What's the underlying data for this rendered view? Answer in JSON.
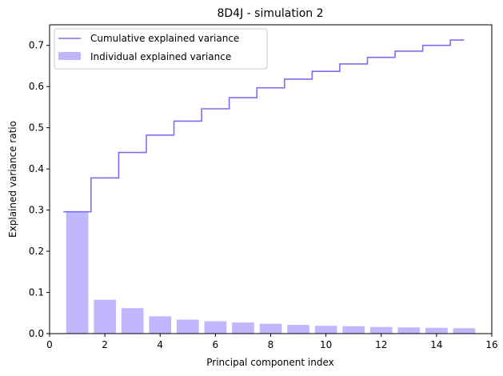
{
  "chart_data": {
    "type": "bar",
    "title": "8D4J - simulation 2",
    "xlabel": "Principal component index",
    "ylabel": "Explained variance ratio",
    "xlim": [
      0,
      16
    ],
    "ylim": [
      0,
      0.75
    ],
    "xticks": [
      0,
      2,
      4,
      6,
      8,
      10,
      12,
      14,
      16
    ],
    "yticks": [
      0.0,
      0.1,
      0.2,
      0.3,
      0.4,
      0.5,
      0.6,
      0.7
    ],
    "x": [
      1,
      2,
      3,
      4,
      5,
      6,
      7,
      8,
      9,
      10,
      11,
      12,
      13,
      14,
      15
    ],
    "series": [
      {
        "name": "Individual explained variance",
        "type": "bar",
        "color": "#c0b7ff",
        "values": [
          0.296,
          0.082,
          0.062,
          0.042,
          0.034,
          0.03,
          0.027,
          0.024,
          0.021,
          0.019,
          0.018,
          0.016,
          0.015,
          0.014,
          0.013
        ]
      },
      {
        "name": "Cumulative explained variance",
        "type": "step",
        "color": "#7b6ef6",
        "values": [
          0.296,
          0.378,
          0.44,
          0.482,
          0.516,
          0.546,
          0.573,
          0.597,
          0.618,
          0.637,
          0.655,
          0.671,
          0.686,
          0.7,
          0.713
        ]
      }
    ],
    "legend": {
      "position": "upper-left",
      "entries": [
        "Cumulative explained variance",
        "Individual explained variance"
      ]
    },
    "grid": false
  }
}
